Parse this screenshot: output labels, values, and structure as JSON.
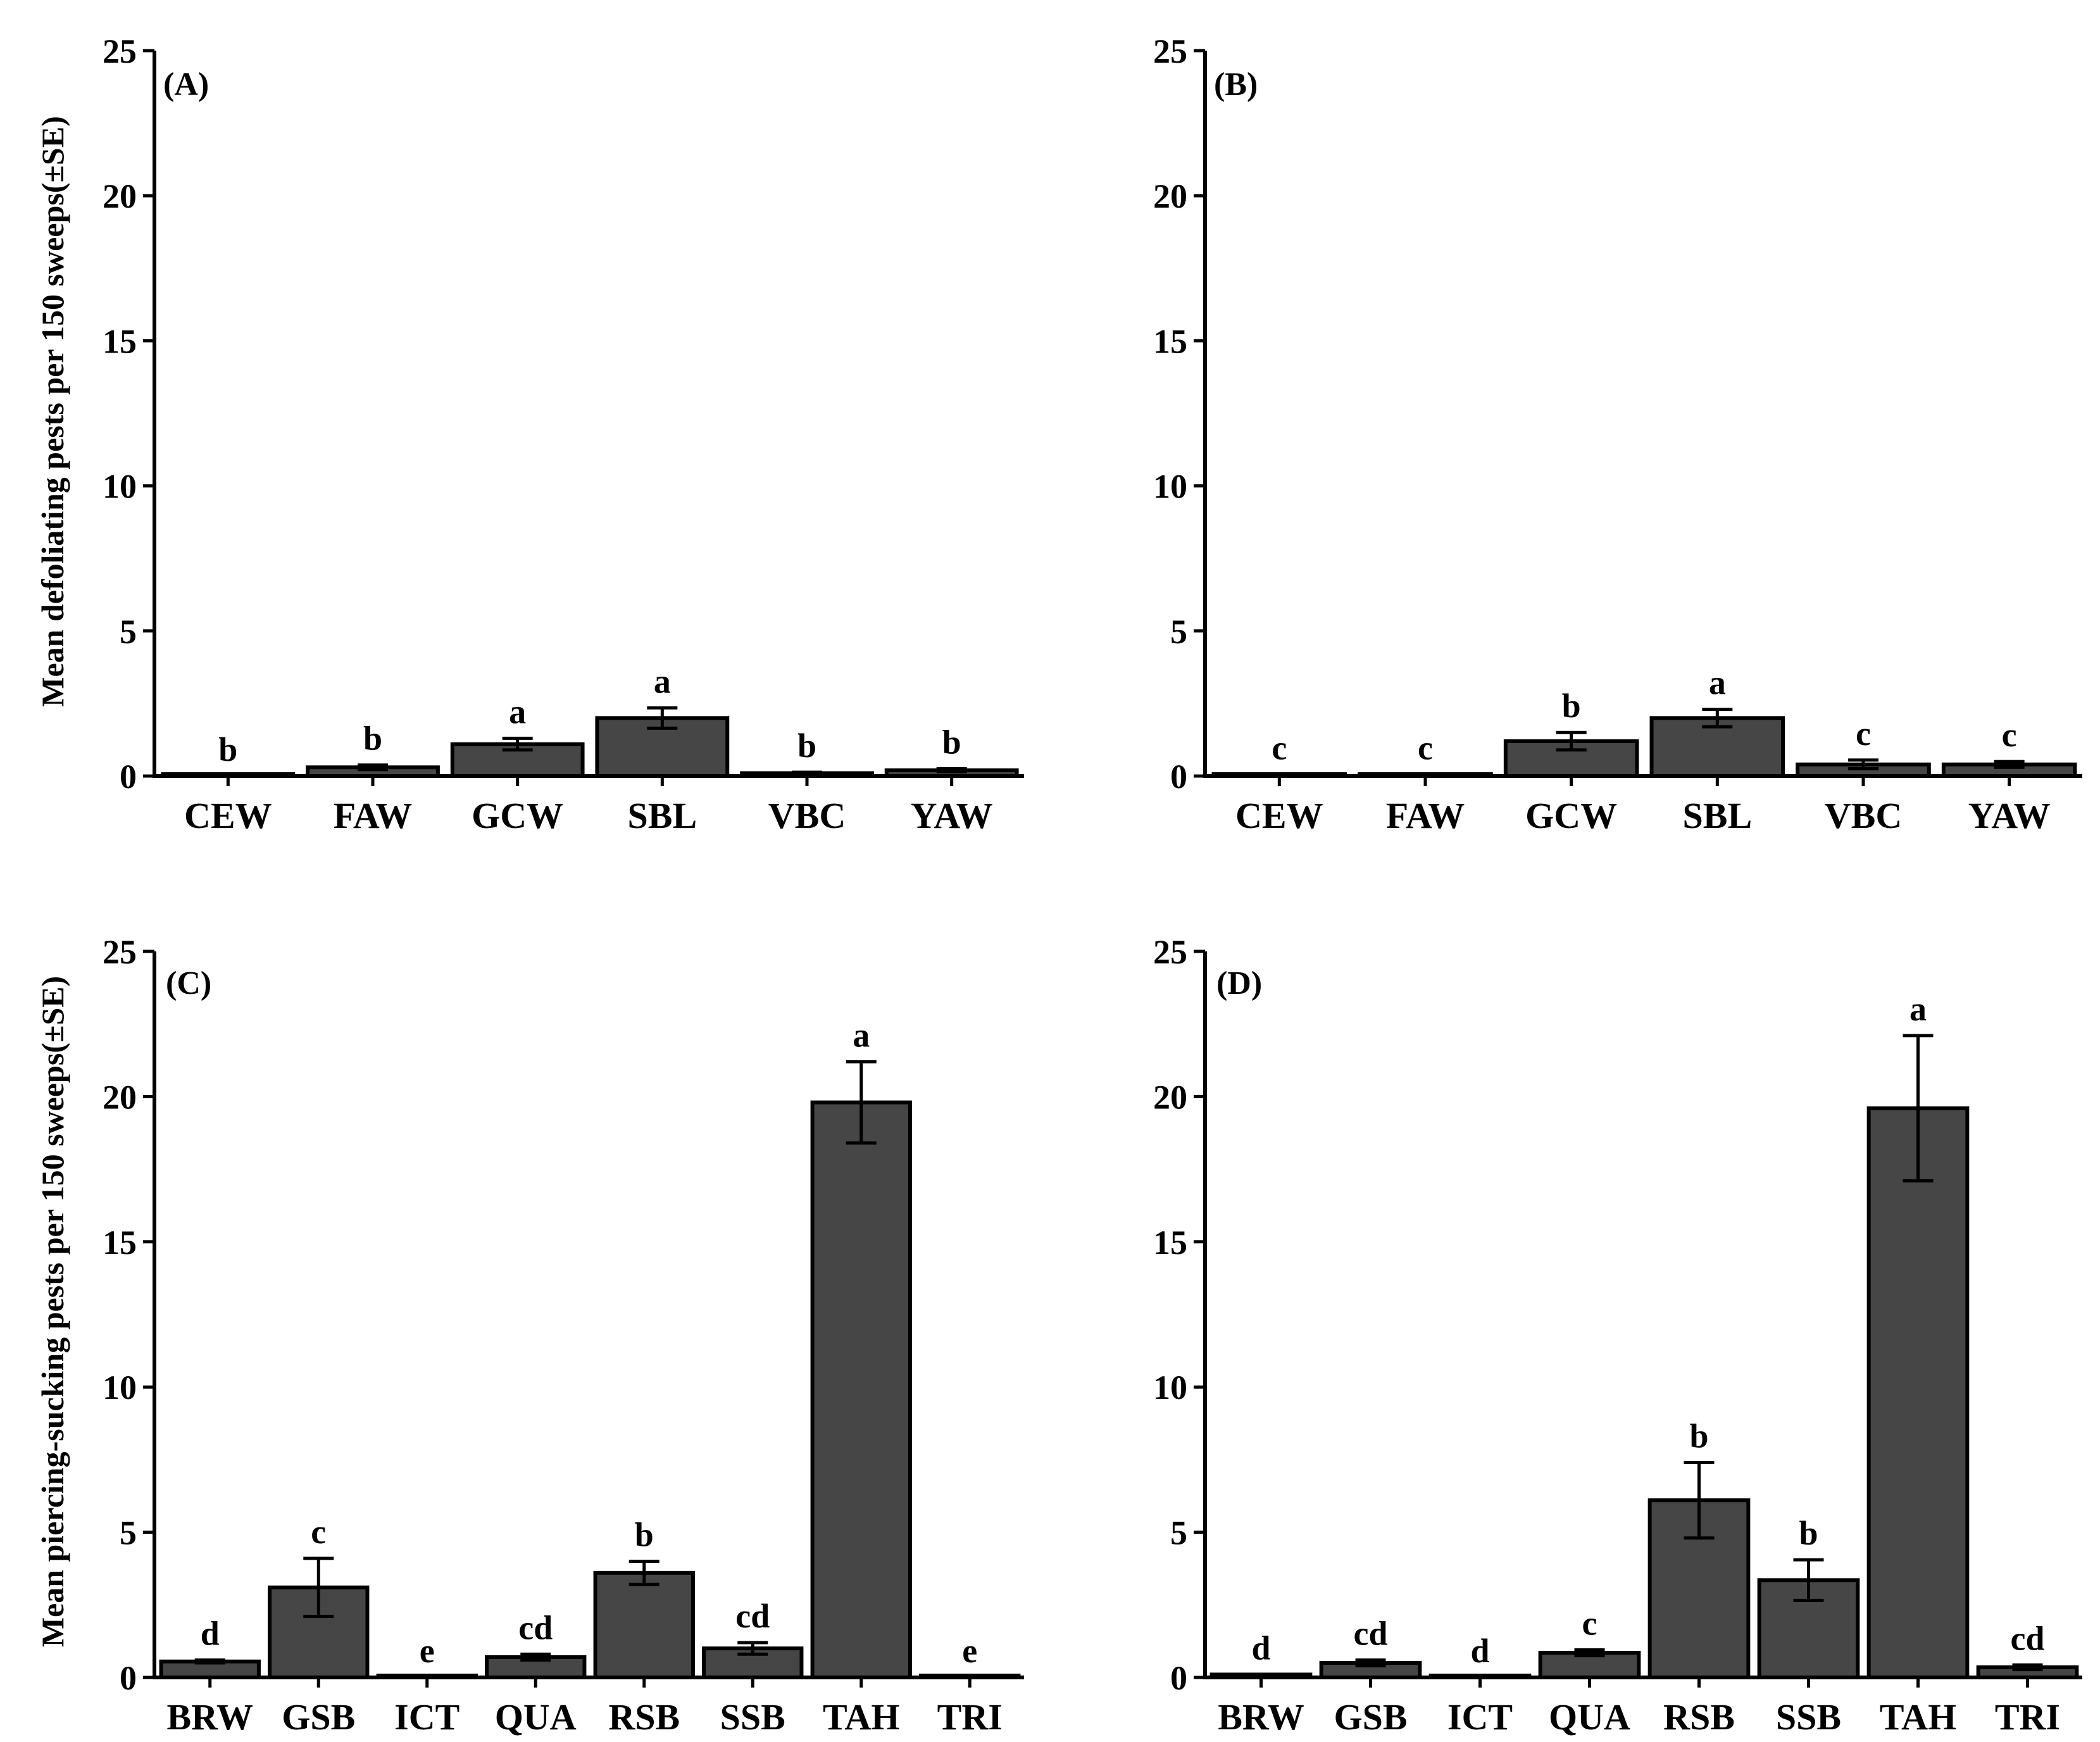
{
  "chart_data": [
    {
      "type": "bar",
      "panel": "(A)",
      "categories": [
        "CEW",
        "FAW",
        "GCW",
        "SBL",
        "VBC",
        "YAW"
      ],
      "values": [
        0.0,
        0.3,
        1.1,
        2.0,
        0.1,
        0.2
      ],
      "errors": [
        0.0,
        0.08,
        0.2,
        0.35,
        0.03,
        0.05
      ],
      "letters": [
        "b",
        "b",
        "a",
        "a",
        "b",
        "b"
      ],
      "ylim": [
        0,
        25
      ],
      "yticks": [
        "0",
        "5",
        "10",
        "15",
        "20",
        "25"
      ],
      "ylabel": "Mean defoliating pests per 150 sweeps(±SE)",
      "xlabel": ""
    },
    {
      "type": "bar",
      "panel": "(B)",
      "categories": [
        "CEW",
        "FAW",
        "GCW",
        "SBL",
        "VBC",
        "YAW"
      ],
      "values": [
        0.05,
        0.05,
        1.2,
        2.0,
        0.4,
        0.4
      ],
      "errors": [
        0.0,
        0.0,
        0.3,
        0.3,
        0.15,
        0.1
      ],
      "letters": [
        "c",
        "c",
        "b",
        "a",
        "c",
        "c"
      ],
      "ylim": [
        0,
        25
      ],
      "yticks": [
        "0",
        "5",
        "10",
        "15",
        "20",
        "25"
      ],
      "ylabel": "",
      "xlabel": ""
    },
    {
      "type": "bar",
      "panel": "(C)",
      "categories": [
        "BRW",
        "GSB",
        "ICT",
        "QUA",
        "RSB",
        "SSB",
        "TAH",
        "TRI"
      ],
      "values": [
        0.55,
        3.1,
        0.0,
        0.7,
        3.6,
        1.0,
        19.8,
        0.0
      ],
      "errors": [
        0.05,
        1.0,
        0.0,
        0.1,
        0.4,
        0.2,
        1.4,
        0.0
      ],
      "letters": [
        "d",
        "c",
        "e",
        "cd",
        "b",
        "cd",
        "a",
        "e"
      ],
      "ylim": [
        0,
        25
      ],
      "yticks": [
        "0",
        "5",
        "10",
        "15",
        "20",
        "25"
      ],
      "ylabel": "Mean piercing-sucking pests per 150 sweeps(±SE)",
      "xlabel": ""
    },
    {
      "type": "bar",
      "panel": "(D)",
      "categories": [
        "BRW",
        "GSB",
        "ICT",
        "QUA",
        "RSB",
        "SSB",
        "TAH",
        "TRI"
      ],
      "values": [
        0.1,
        0.5,
        0.0,
        0.85,
        6.1,
        3.35,
        19.6,
        0.35
      ],
      "errors": [
        0.0,
        0.1,
        0.0,
        0.1,
        1.3,
        0.7,
        2.5,
        0.08
      ],
      "letters": [
        "d",
        "cd",
        "d",
        "c",
        "b",
        "b",
        "a",
        "cd"
      ],
      "ylim": [
        0,
        25
      ],
      "yticks": [
        "0",
        "5",
        "10",
        "15",
        "20",
        "25"
      ],
      "ylabel": "",
      "xlabel": ""
    }
  ]
}
